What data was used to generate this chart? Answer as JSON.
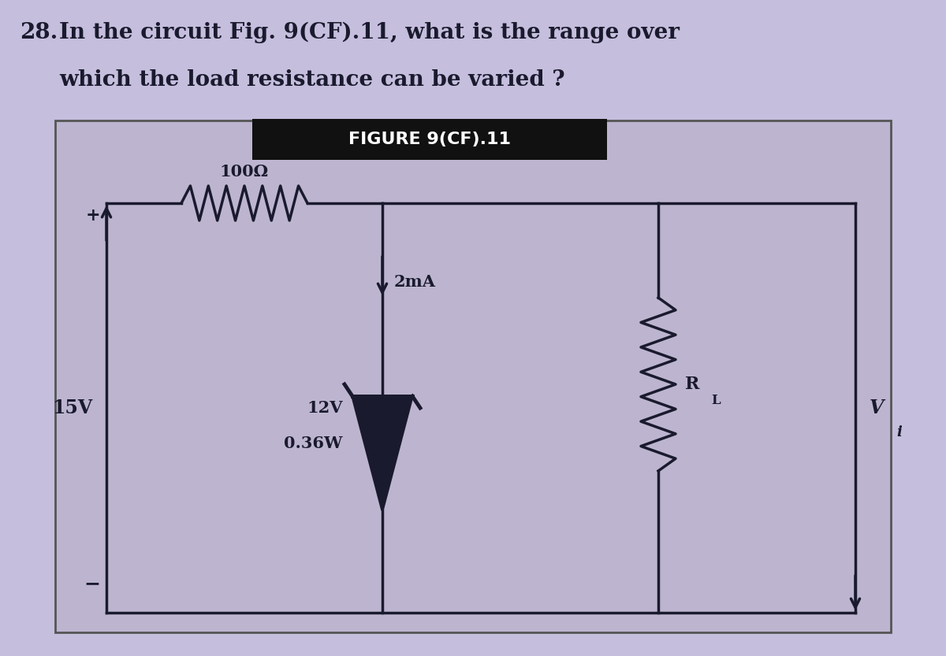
{
  "title_number": "28.",
  "question_line1": "In the circuit Fig. 9(CF).11, what is the range over",
  "question_line2": "which the load resistance can be varied ?",
  "figure_label": "FIGURE 9(CF).11",
  "circuit_labels": {
    "resistor_top": "100Ω",
    "current": "2mA",
    "voltage_source": "15V",
    "zener_voltage": "12V",
    "zener_power": "0.36W",
    "rl_label": "R",
    "rl_sub": "L",
    "vi_label": "V",
    "vi_sub": "i",
    "plus": "+",
    "minus": "−"
  },
  "page_bg": "#c5bedd",
  "circuit_bg": "#bdb5d0",
  "figure_label_bg": "#111111",
  "figure_label_color": "#ffffff",
  "text_color": "#1a1a2e",
  "line_color": "#1a1a2e",
  "circuit_border": "#555555"
}
